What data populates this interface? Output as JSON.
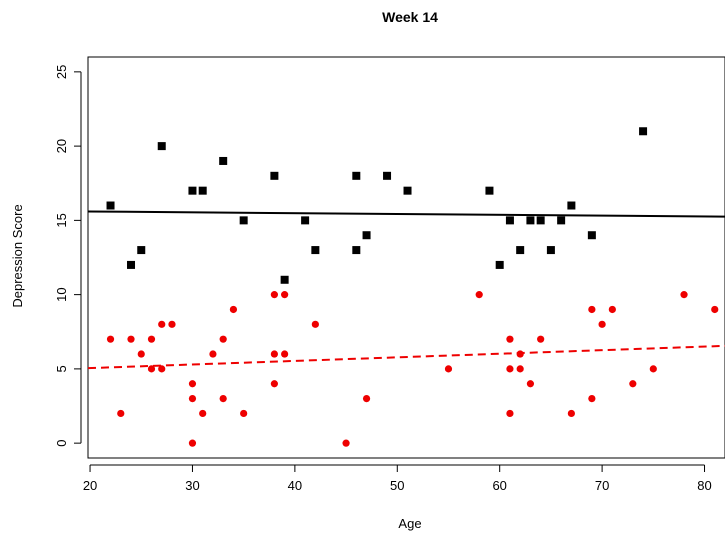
{
  "chart_data": {
    "type": "scatter",
    "title": "Week 14",
    "xlabel": "Age",
    "ylabel": "Depression Score",
    "xlim": [
      19.8,
      82
    ],
    "ylim": [
      -1.0,
      26.0
    ],
    "x_ticks": [
      20,
      30,
      40,
      50,
      60,
      70,
      80
    ],
    "y_ticks": [
      0,
      5,
      10,
      15,
      20,
      25
    ],
    "grid": false,
    "legend": "none",
    "series": [
      {
        "marker": "square",
        "color": "#000000",
        "points": [
          [
            22,
            16
          ],
          [
            24,
            12
          ],
          [
            25,
            13
          ],
          [
            27,
            20
          ],
          [
            30,
            17
          ],
          [
            31,
            17
          ],
          [
            33,
            19
          ],
          [
            35,
            15
          ],
          [
            38,
            18
          ],
          [
            39,
            11
          ],
          [
            41,
            15
          ],
          [
            42,
            13
          ],
          [
            46,
            18
          ],
          [
            46,
            13
          ],
          [
            47,
            14
          ],
          [
            49,
            18
          ],
          [
            51,
            17
          ],
          [
            59,
            17
          ],
          [
            60,
            12
          ],
          [
            61,
            15
          ],
          [
            62,
            13
          ],
          [
            63,
            15
          ],
          [
            64,
            15
          ],
          [
            65,
            13
          ],
          [
            66,
            15
          ],
          [
            67,
            16
          ],
          [
            69,
            14
          ],
          [
            74,
            21
          ]
        ],
        "trend": {
          "style": "solid",
          "x": [
            19.8,
            82
          ],
          "y": [
            15.6,
            15.25
          ]
        }
      },
      {
        "marker": "circle",
        "color": "#ee0000",
        "points": [
          [
            22,
            7
          ],
          [
            23,
            2
          ],
          [
            24,
            7
          ],
          [
            25,
            6
          ],
          [
            26,
            7
          ],
          [
            26,
            5
          ],
          [
            27,
            5
          ],
          [
            27,
            8
          ],
          [
            28,
            8
          ],
          [
            30,
            4
          ],
          [
            30,
            3
          ],
          [
            30,
            0
          ],
          [
            31,
            2
          ],
          [
            32,
            6
          ],
          [
            33,
            7
          ],
          [
            33,
            3
          ],
          [
            34,
            9
          ],
          [
            35,
            2
          ],
          [
            38,
            10
          ],
          [
            38,
            6
          ],
          [
            38,
            4
          ],
          [
            39,
            10
          ],
          [
            39,
            6
          ],
          [
            42,
            8
          ],
          [
            45,
            0
          ],
          [
            47,
            3
          ],
          [
            55,
            5
          ],
          [
            58,
            10
          ],
          [
            61,
            7
          ],
          [
            61,
            5
          ],
          [
            61,
            2
          ],
          [
            62,
            6
          ],
          [
            62,
            5
          ],
          [
            63,
            4
          ],
          [
            64,
            7
          ],
          [
            67,
            2
          ],
          [
            69,
            9
          ],
          [
            69,
            3
          ],
          [
            70,
            8
          ],
          [
            71,
            9
          ],
          [
            73,
            4
          ],
          [
            75,
            5
          ],
          [
            78,
            10
          ],
          [
            81,
            9
          ]
        ],
        "trend": {
          "style": "dashed",
          "x": [
            19.8,
            82
          ],
          "y": [
            5.05,
            6.55
          ]
        }
      }
    ]
  }
}
